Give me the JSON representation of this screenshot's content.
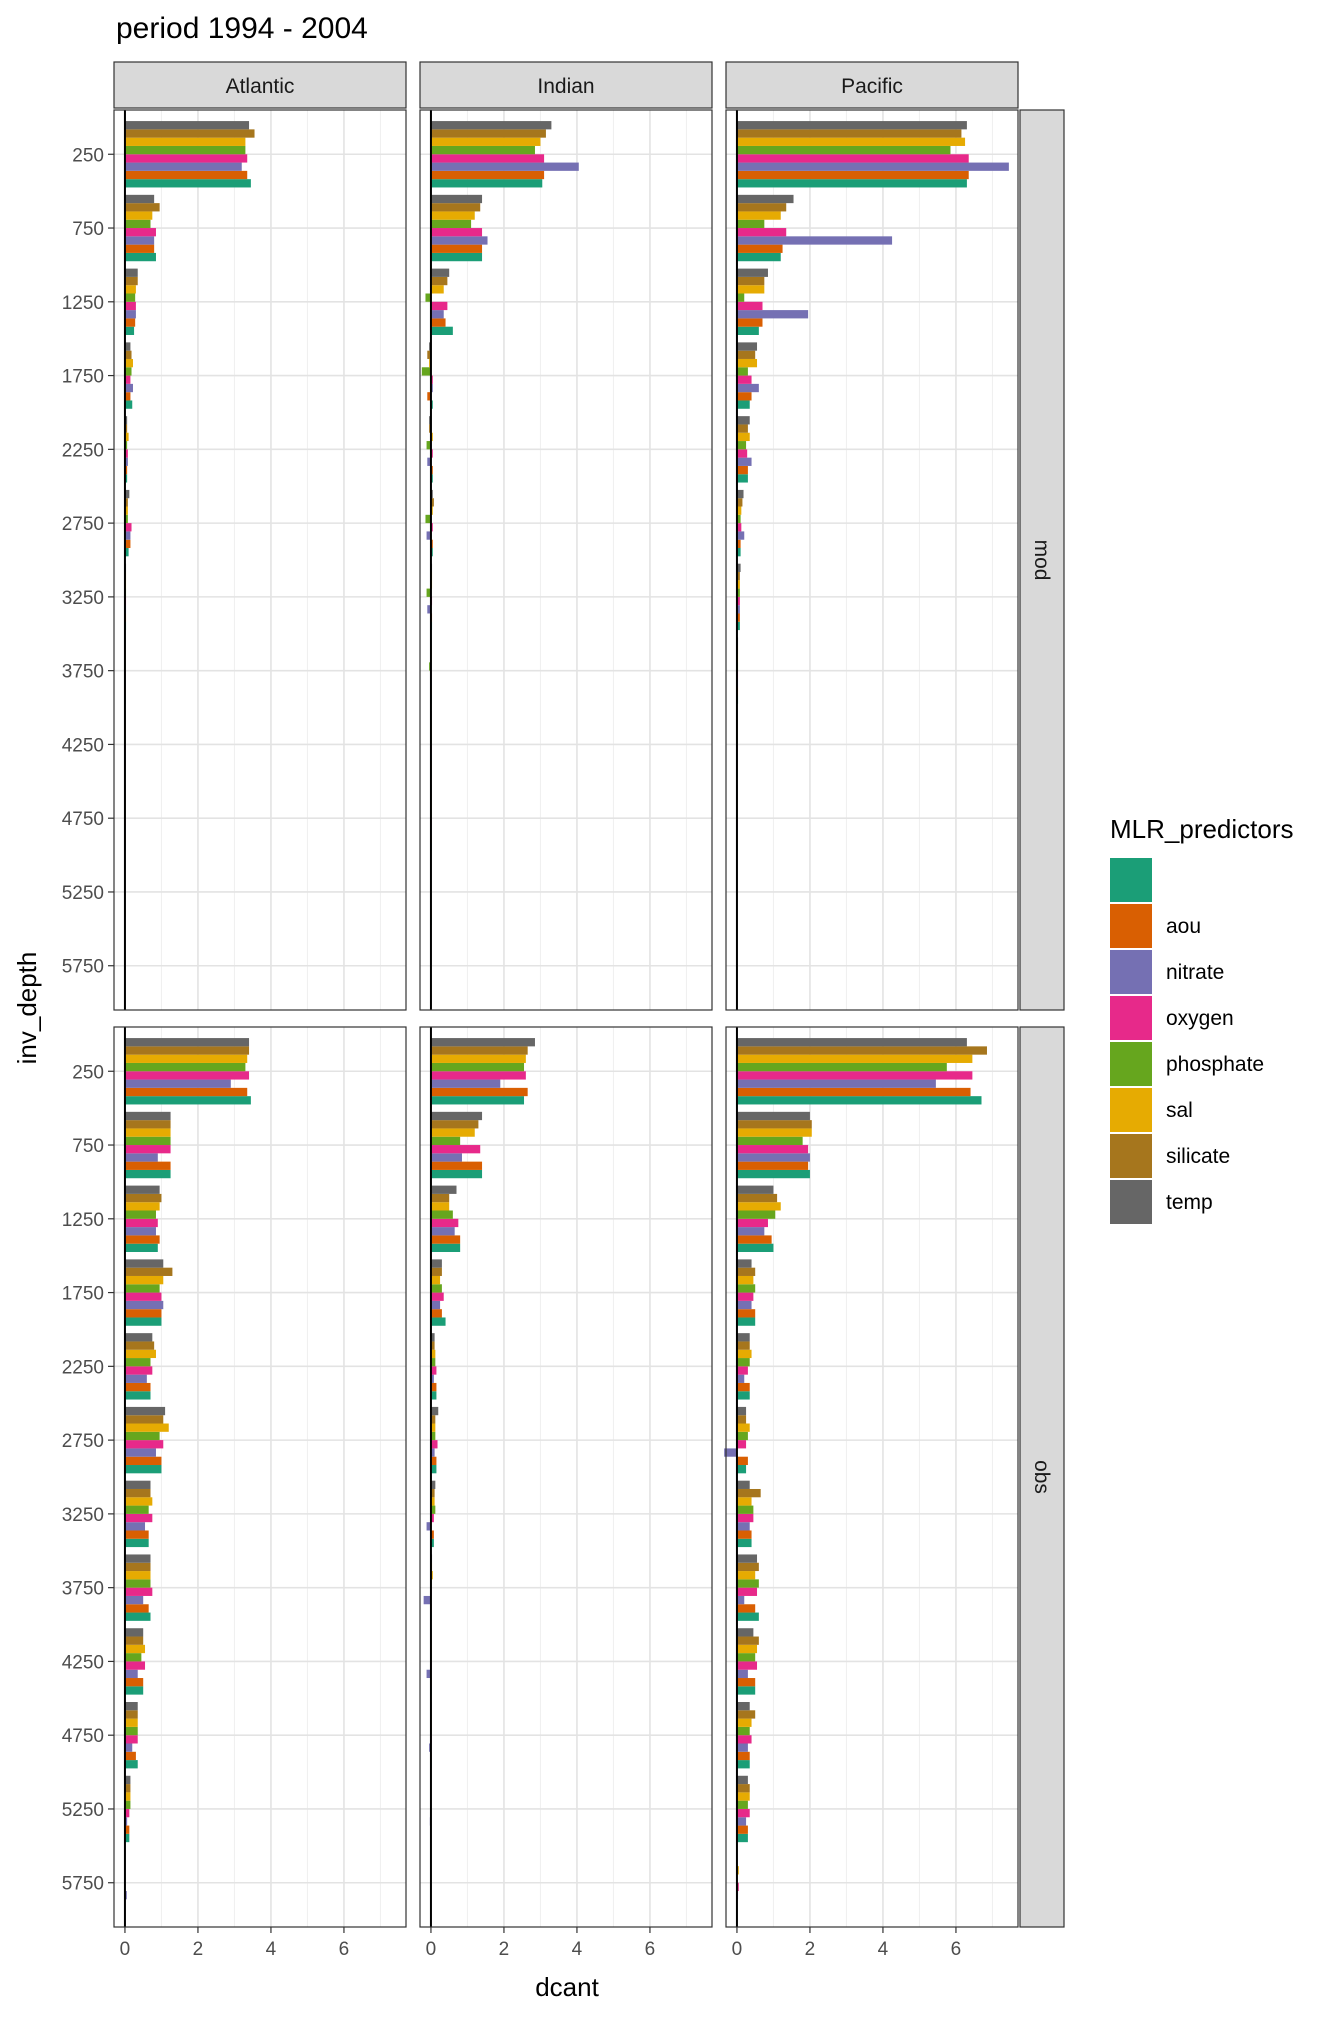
{
  "chart_data": {
    "type": "bar",
    "orientation": "horizontal",
    "title": "period 1994 - 2004",
    "xlabel": "dcant",
    "ylabel": "inv_depth",
    "xlim": [
      -0.3,
      7.7
    ],
    "x_ticks": [
      0,
      2,
      4,
      6
    ],
    "x_tick_labels": [
      "0",
      "2",
      "4",
      "6"
    ],
    "y_categories": [
      250,
      750,
      1250,
      1750,
      2250,
      2750,
      3250,
      3750,
      4250,
      4750,
      5250,
      5750
    ],
    "y_tick_labels": [
      "250",
      "750",
      "1250",
      "1750",
      "2250",
      "2750",
      "3250",
      "3750",
      "4250",
      "4750",
      "5250",
      "5750"
    ],
    "y_reversed": true,
    "grid": true,
    "legend": {
      "title": "MLR_predictors",
      "position": "right",
      "entries": [
        "",
        "aou",
        "nitrate",
        "oxygen",
        "phosphate",
        "sal",
        "silicate",
        "temp"
      ]
    },
    "colors": {
      "": "#1B9E77",
      "aou": "#D95F02",
      "nitrate": "#7570B3",
      "oxygen": "#E7298A",
      "phosphate": "#66A61E",
      "sal": "#E6AB02",
      "silicate": "#A6761D",
      "temp": "#666666"
    },
    "facet_columns": [
      "Atlantic",
      "Indian",
      "Pacific"
    ],
    "facet_rows": [
      "mod",
      "obs"
    ],
    "series_order": [
      "",
      "aou",
      "nitrate",
      "oxygen",
      "phosphate",
      "sal",
      "silicate",
      "temp"
    ],
    "panels": {
      "mod": {
        "Atlantic": {
          "": [
            3.45,
            0.85,
            0.25,
            0.2,
            0.06,
            0.1,
            0.03,
            0.02,
            0.02,
            0.02,
            0.01,
            0
          ],
          "aou": [
            3.35,
            0.8,
            0.28,
            0.15,
            0.06,
            0.15,
            0.03,
            0.02,
            0.02,
            0.02,
            0.02,
            0
          ],
          "nitrate": [
            3.2,
            0.8,
            0.3,
            0.22,
            0.08,
            0.15,
            0.03,
            0.02,
            0.02,
            0.02,
            0.01,
            0
          ],
          "oxygen": [
            3.35,
            0.85,
            0.3,
            0.15,
            0.08,
            0.18,
            0.03,
            0.02,
            0.02,
            0.02,
            0.01,
            0
          ],
          "phosphate": [
            3.3,
            0.7,
            0.28,
            0.18,
            0.06,
            0.08,
            0.03,
            0.02,
            0.02,
            0.02,
            0.01,
            0
          ],
          "sal": [
            3.3,
            0.75,
            0.3,
            0.22,
            0.1,
            0.08,
            0.03,
            0.02,
            0.02,
            0.02,
            0.01,
            0
          ],
          "silicate": [
            3.55,
            0.95,
            0.35,
            0.18,
            0.06,
            0.08,
            0.03,
            0.02,
            0.02,
            0.02,
            0.01,
            0
          ],
          "temp": [
            3.4,
            0.8,
            0.35,
            0.15,
            0.06,
            0.12,
            0.03,
            0.02,
            0.02,
            0.02,
            0.01,
            0
          ]
        },
        "Indian": {
          "": [
            3.05,
            1.4,
            0.6,
            0.05,
            0.05,
            0.05,
            0.03,
            0.02,
            0.02,
            0.02,
            0.02,
            0
          ],
          "aou": [
            3.1,
            1.4,
            0.4,
            -0.1,
            0.05,
            0.05,
            0.03,
            0.02,
            0.02,
            0.02,
            0.02,
            0
          ],
          "nitrate": [
            4.05,
            1.55,
            0.35,
            0.05,
            -0.1,
            -0.12,
            -0.1,
            0.02,
            0.02,
            0.02,
            0.01,
            0
          ],
          "oxygen": [
            3.1,
            1.4,
            0.45,
            0.05,
            0.05,
            0.05,
            0.03,
            0.02,
            0.02,
            0.02,
            0.01,
            0
          ],
          "phosphate": [
            2.85,
            1.1,
            -0.15,
            -0.25,
            -0.12,
            -0.15,
            -0.12,
            -0.05,
            0.02,
            0.02,
            0.01,
            0
          ],
          "sal": [
            3.0,
            1.2,
            0.35,
            -0.05,
            0.05,
            0.05,
            0.03,
            0.02,
            0.02,
            0.02,
            0.01,
            0
          ],
          "silicate": [
            3.15,
            1.35,
            0.45,
            -0.1,
            -0.05,
            0.08,
            0.03,
            0.02,
            0.02,
            0.02,
            0.01,
            0
          ],
          "temp": [
            3.3,
            1.4,
            0.5,
            -0.05,
            -0.05,
            0.05,
            0.03,
            0.02,
            0.02,
            0.02,
            0.01,
            0
          ]
        },
        "Pacific": {
          "": [
            6.3,
            1.2,
            0.6,
            0.35,
            0.3,
            0.1,
            0.08,
            0.03,
            0.02,
            0.02,
            0.01,
            0
          ],
          "aou": [
            6.35,
            1.25,
            0.7,
            0.4,
            0.3,
            0.1,
            0.08,
            0.03,
            0.02,
            0.02,
            0.01,
            0
          ],
          "nitrate": [
            7.45,
            4.25,
            1.95,
            0.6,
            0.4,
            0.2,
            0.08,
            0.03,
            0.02,
            0.02,
            0.01,
            0
          ],
          "oxygen": [
            6.35,
            1.35,
            0.7,
            0.4,
            0.28,
            0.12,
            0.08,
            0.03,
            0.02,
            0.02,
            0.01,
            0
          ],
          "phosphate": [
            5.85,
            0.75,
            0.2,
            0.3,
            0.25,
            0.1,
            0.08,
            0.03,
            0.02,
            0.02,
            0.01,
            0
          ],
          "sal": [
            6.25,
            1.2,
            0.75,
            0.55,
            0.35,
            0.12,
            0.08,
            0.03,
            0.02,
            0.02,
            0.01,
            0
          ],
          "silicate": [
            6.15,
            1.35,
            0.75,
            0.5,
            0.3,
            0.15,
            0.08,
            0.03,
            0.02,
            0.02,
            0.01,
            0
          ],
          "temp": [
            6.3,
            1.55,
            0.85,
            0.55,
            0.35,
            0.18,
            0.1,
            0.03,
            0.02,
            0.02,
            0.01,
            0
          ]
        }
      },
      "obs": {
        "Atlantic": {
          "": [
            3.45,
            1.25,
            0.9,
            1.0,
            0.7,
            1.0,
            0.65,
            0.7,
            0.5,
            0.35,
            0.12,
            0
          ],
          "aou": [
            3.35,
            1.25,
            0.95,
            1.0,
            0.7,
            1.0,
            0.65,
            0.65,
            0.5,
            0.3,
            0.12,
            0
          ],
          "nitrate": [
            2.9,
            0.9,
            0.85,
            1.05,
            0.6,
            0.85,
            0.55,
            0.5,
            0.35,
            0.2,
            0.06,
            0.05
          ],
          "oxygen": [
            3.4,
            1.25,
            0.9,
            1.0,
            0.75,
            1.05,
            0.75,
            0.75,
            0.55,
            0.35,
            0.12,
            0
          ],
          "phosphate": [
            3.3,
            1.25,
            0.85,
            0.95,
            0.7,
            0.95,
            0.65,
            0.7,
            0.45,
            0.35,
            0.15,
            0
          ],
          "sal": [
            3.35,
            1.25,
            0.95,
            1.05,
            0.85,
            1.2,
            0.75,
            0.7,
            0.55,
            0.35,
            0.15,
            0
          ],
          "silicate": [
            3.4,
            1.25,
            1.0,
            1.3,
            0.8,
            1.05,
            0.7,
            0.7,
            0.5,
            0.35,
            0.15,
            0
          ],
          "temp": [
            3.4,
            1.25,
            0.95,
            1.05,
            0.75,
            1.1,
            0.7,
            0.7,
            0.5,
            0.35,
            0.15,
            0
          ]
        },
        "Indian": {
          "": [
            2.55,
            1.4,
            0.8,
            0.4,
            0.15,
            0.15,
            0.08,
            0.02,
            0.02,
            0.02,
            0.01,
            0
          ],
          "aou": [
            2.65,
            1.4,
            0.8,
            0.3,
            0.15,
            0.15,
            0.08,
            0.02,
            0.02,
            0.02,
            0.01,
            0
          ],
          "nitrate": [
            1.9,
            0.85,
            0.65,
            0.25,
            0.08,
            0.1,
            -0.12,
            -0.2,
            -0.12,
            -0.05,
            -0.03,
            0
          ],
          "oxygen": [
            2.6,
            1.35,
            0.75,
            0.35,
            0.15,
            0.18,
            0.08,
            0.02,
            0.02,
            0.02,
            0.01,
            0
          ],
          "phosphate": [
            2.55,
            0.8,
            0.6,
            0.3,
            0.12,
            0.12,
            0.12,
            0.02,
            0.02,
            0.02,
            0.01,
            0
          ],
          "sal": [
            2.6,
            1.2,
            0.5,
            0.25,
            0.12,
            0.12,
            0.1,
            0.05,
            0.02,
            0.02,
            0.01,
            0
          ],
          "silicate": [
            2.65,
            1.3,
            0.5,
            0.3,
            0.1,
            0.12,
            0.1,
            0.03,
            0.02,
            0.02,
            0.01,
            0
          ],
          "temp": [
            2.85,
            1.4,
            0.7,
            0.3,
            0.1,
            0.2,
            0.12,
            0.03,
            0.02,
            0.02,
            0.01,
            0
          ]
        },
        "Pacific": {
          "": [
            6.7,
            2.0,
            1.0,
            0.5,
            0.35,
            0.25,
            0.4,
            0.6,
            0.5,
            0.35,
            0.3,
            0
          ],
          "aou": [
            6.4,
            1.95,
            0.95,
            0.5,
            0.35,
            0.3,
            0.4,
            0.5,
            0.5,
            0.35,
            0.3,
            0
          ],
          "nitrate": [
            5.45,
            2.0,
            0.75,
            0.4,
            0.2,
            -0.35,
            0.35,
            0.2,
            0.3,
            0.3,
            0.25,
            0.03
          ],
          "oxygen": [
            6.45,
            1.95,
            0.85,
            0.45,
            0.3,
            0.25,
            0.45,
            0.55,
            0.55,
            0.4,
            0.35,
            0.05
          ],
          "phosphate": [
            5.75,
            1.8,
            1.05,
            0.5,
            0.35,
            0.3,
            0.45,
            0.6,
            0.5,
            0.35,
            0.3,
            0
          ],
          "sal": [
            6.45,
            2.05,
            1.2,
            0.45,
            0.4,
            0.35,
            0.4,
            0.5,
            0.55,
            0.4,
            0.35,
            0.05
          ],
          "silicate": [
            6.85,
            2.05,
            1.1,
            0.5,
            0.35,
            0.25,
            0.65,
            0.6,
            0.6,
            0.5,
            0.35,
            0
          ],
          "temp": [
            6.3,
            2.0,
            1.0,
            0.4,
            0.35,
            0.25,
            0.35,
            0.55,
            0.45,
            0.35,
            0.3,
            0
          ]
        }
      }
    }
  }
}
